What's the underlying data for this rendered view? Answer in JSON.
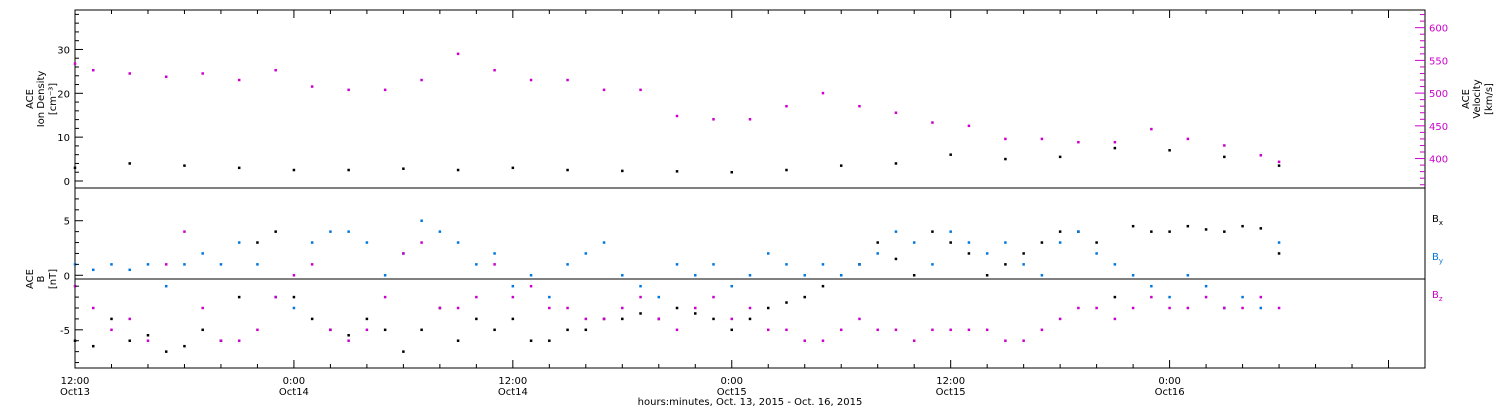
{
  "colors": {
    "density": "#000000",
    "velocity": "#cc00cc",
    "bx": "#000000",
    "by": "#0077dd",
    "bz": "#cc00cc"
  },
  "time_labels": [
    {
      "time": "12:00",
      "date": "Oct13",
      "t": 0
    },
    {
      "time": "0:00",
      "date": "Oct14",
      "t": 12
    },
    {
      "time": "12:00",
      "date": "Oct14",
      "t": 24
    },
    {
      "time": "0:00",
      "date": "Oct15",
      "t": 36
    },
    {
      "time": "12:00",
      "date": "Oct15",
      "t": 48
    },
    {
      "time": "0:00",
      "date": "Oct16",
      "t": 60
    }
  ],
  "xlabel": "hours:minutes, Oct. 13, 2015 - Oct. 16, 2015",
  "top_panel": {
    "left_label": [
      "ACE",
      "Ion Density",
      "[cm⁻³]"
    ],
    "right_label": [
      "ACE",
      "Velocity",
      "[km/s]"
    ],
    "left_ticks": [
      "0",
      "10",
      "20",
      "30"
    ],
    "right_ticks": [
      "400",
      "450",
      "500",
      "550",
      "600"
    ]
  },
  "bottom_panel": {
    "left_label": [
      "ACE",
      "B",
      "[nT]"
    ],
    "left_ticks": [
      "-5",
      "0",
      "5"
    ],
    "legend": [
      {
        "key": "bx",
        "base": "B",
        "sub": "x"
      },
      {
        "key": "by",
        "base": "B",
        "sub": "y"
      },
      {
        "key": "bz",
        "base": "B",
        "sub": "z"
      }
    ]
  },
  "chart_data": [
    {
      "type": "scatter",
      "x_units": "hours since Oct 13 12:00",
      "xlim": [
        0,
        74
      ],
      "series": [
        {
          "name": "Ion Density",
          "axis": "left",
          "ylim": [
            -1.6,
            39
          ],
          "x": [
            0,
            3,
            6,
            9,
            12,
            15,
            18,
            21,
            24,
            27,
            30,
            33,
            36,
            39,
            42,
            45,
            48,
            51,
            54,
            57,
            60,
            63,
            66
          ],
          "y": [
            3,
            4,
            3.5,
            3,
            2.5,
            2.5,
            2.8,
            2.5,
            3,
            2.5,
            2.3,
            2.2,
            2,
            2.5,
            3.5,
            4,
            6,
            5,
            5.5,
            7.5,
            7,
            5.5,
            3.5
          ]
        },
        {
          "name": "Velocity",
          "axis": "right",
          "ylim": [
            355,
            627
          ],
          "x": [
            0,
            1,
            3,
            5,
            7,
            9,
            11,
            13,
            15,
            17,
            19,
            21,
            23,
            25,
            27,
            29,
            31,
            33,
            35,
            37,
            39,
            41,
            43,
            45,
            47,
            49,
            51,
            53,
            55,
            57,
            59,
            61,
            63,
            65,
            66
          ],
          "y": [
            545,
            535,
            530,
            525,
            530,
            520,
            535,
            510,
            505,
            505,
            520,
            560,
            535,
            520,
            520,
            505,
            505,
            465,
            460,
            460,
            480,
            500,
            480,
            470,
            455,
            450,
            430,
            430,
            425,
            425,
            445,
            430,
            420,
            405,
            395
          ]
        }
      ]
    },
    {
      "type": "scatter",
      "x_units": "hours since Oct 13 12:00",
      "xlim": [
        0,
        74
      ],
      "ylim": [
        -8.5,
        8
      ],
      "series": [
        {
          "name": "Bx",
          "x": [
            0,
            1,
            2,
            3,
            4,
            5,
            6,
            7,
            8,
            9,
            10,
            11,
            12,
            13,
            14,
            15,
            16,
            17,
            18,
            19,
            20,
            21,
            22,
            23,
            24,
            25,
            26,
            27,
            28,
            29,
            30,
            31,
            32,
            33,
            34,
            35,
            36,
            37,
            38,
            39,
            40,
            41,
            42,
            43,
            44,
            45,
            46,
            47,
            48,
            49,
            50,
            51,
            52,
            53,
            54,
            55,
            56,
            57,
            58,
            59,
            60,
            61,
            62,
            63,
            64,
            65,
            66
          ],
          "y": [
            -6,
            -6.5,
            -4,
            -6,
            -5.5,
            -7,
            -6.5,
            -5,
            -6,
            -2,
            3,
            4,
            -2,
            -4,
            -5,
            -5.5,
            -4,
            -5,
            -7,
            -5,
            -3,
            -6,
            -4,
            -5,
            -4,
            -6,
            -6,
            -5,
            -5,
            -4,
            -4,
            -3.5,
            -4,
            -3,
            -3.5,
            -4,
            -5,
            -4,
            -3,
            -2.5,
            -2,
            -1,
            0,
            1,
            3,
            1.5,
            0,
            4,
            3,
            2,
            0,
            1,
            2,
            3,
            4,
            4,
            3,
            -2,
            4.5,
            4,
            4,
            4.5,
            4.2,
            4,
            4.5,
            4.3,
            2
          ]
        },
        {
          "name": "By",
          "x": [
            0,
            1,
            2,
            3,
            4,
            5,
            6,
            7,
            8,
            9,
            10,
            11,
            12,
            13,
            14,
            15,
            16,
            17,
            18,
            19,
            20,
            21,
            22,
            23,
            24,
            25,
            26,
            27,
            28,
            29,
            30,
            31,
            32,
            33,
            34,
            35,
            36,
            37,
            38,
            39,
            40,
            41,
            42,
            43,
            44,
            45,
            46,
            47,
            48,
            49,
            50,
            51,
            52,
            53,
            54,
            55,
            56,
            57,
            58,
            59,
            60,
            61,
            62,
            63,
            64,
            65,
            66
          ],
          "y": [
            1,
            0.5,
            1,
            0.5,
            1,
            -1,
            1,
            2,
            1,
            3,
            1,
            -2,
            -3,
            3,
            4,
            4,
            3,
            0,
            2,
            5,
            4,
            3,
            1,
            2,
            -1,
            0,
            -2,
            1,
            2,
            3,
            0,
            -1,
            -2,
            1,
            0,
            1,
            -1,
            0,
            2,
            1,
            0,
            1,
            0,
            1,
            2,
            4,
            3,
            1,
            4,
            3,
            2,
            3,
            1,
            0,
            3,
            4,
            2,
            1,
            0,
            -1,
            -2,
            0,
            -1,
            -3,
            -2,
            -3,
            3
          ]
        },
        {
          "name": "Bz",
          "x": [
            0,
            1,
            2,
            3,
            4,
            5,
            6,
            7,
            8,
            9,
            10,
            11,
            12,
            13,
            14,
            15,
            16,
            17,
            18,
            19,
            20,
            21,
            22,
            23,
            24,
            25,
            26,
            27,
            28,
            29,
            30,
            31,
            32,
            33,
            34,
            35,
            36,
            37,
            38,
            39,
            40,
            41,
            42,
            43,
            44,
            45,
            46,
            47,
            48,
            49,
            50,
            51,
            52,
            53,
            54,
            55,
            56,
            57,
            58,
            59,
            60,
            61,
            62,
            63,
            64,
            65,
            66
          ],
          "y": [
            -1,
            -3,
            -5,
            -4,
            -6,
            1,
            4,
            -3,
            -6,
            -6,
            -5,
            -2,
            0,
            1,
            -5,
            -6,
            -5,
            -2,
            2,
            3,
            -3,
            -3,
            -2,
            1,
            -2,
            -1,
            -3,
            -3,
            -4,
            -4,
            -3,
            -2,
            -4,
            -5,
            -3,
            -2,
            -4,
            -3,
            -5,
            -5,
            -6,
            -6,
            -5,
            -4,
            -5,
            -5,
            -6,
            -5,
            -5,
            -5,
            -5,
            -6,
            -6,
            -5,
            -4,
            -3,
            -3,
            -4,
            -3,
            -2,
            -3,
            -3,
            -2,
            -3,
            -3,
            -2,
            -3
          ]
        }
      ]
    }
  ]
}
